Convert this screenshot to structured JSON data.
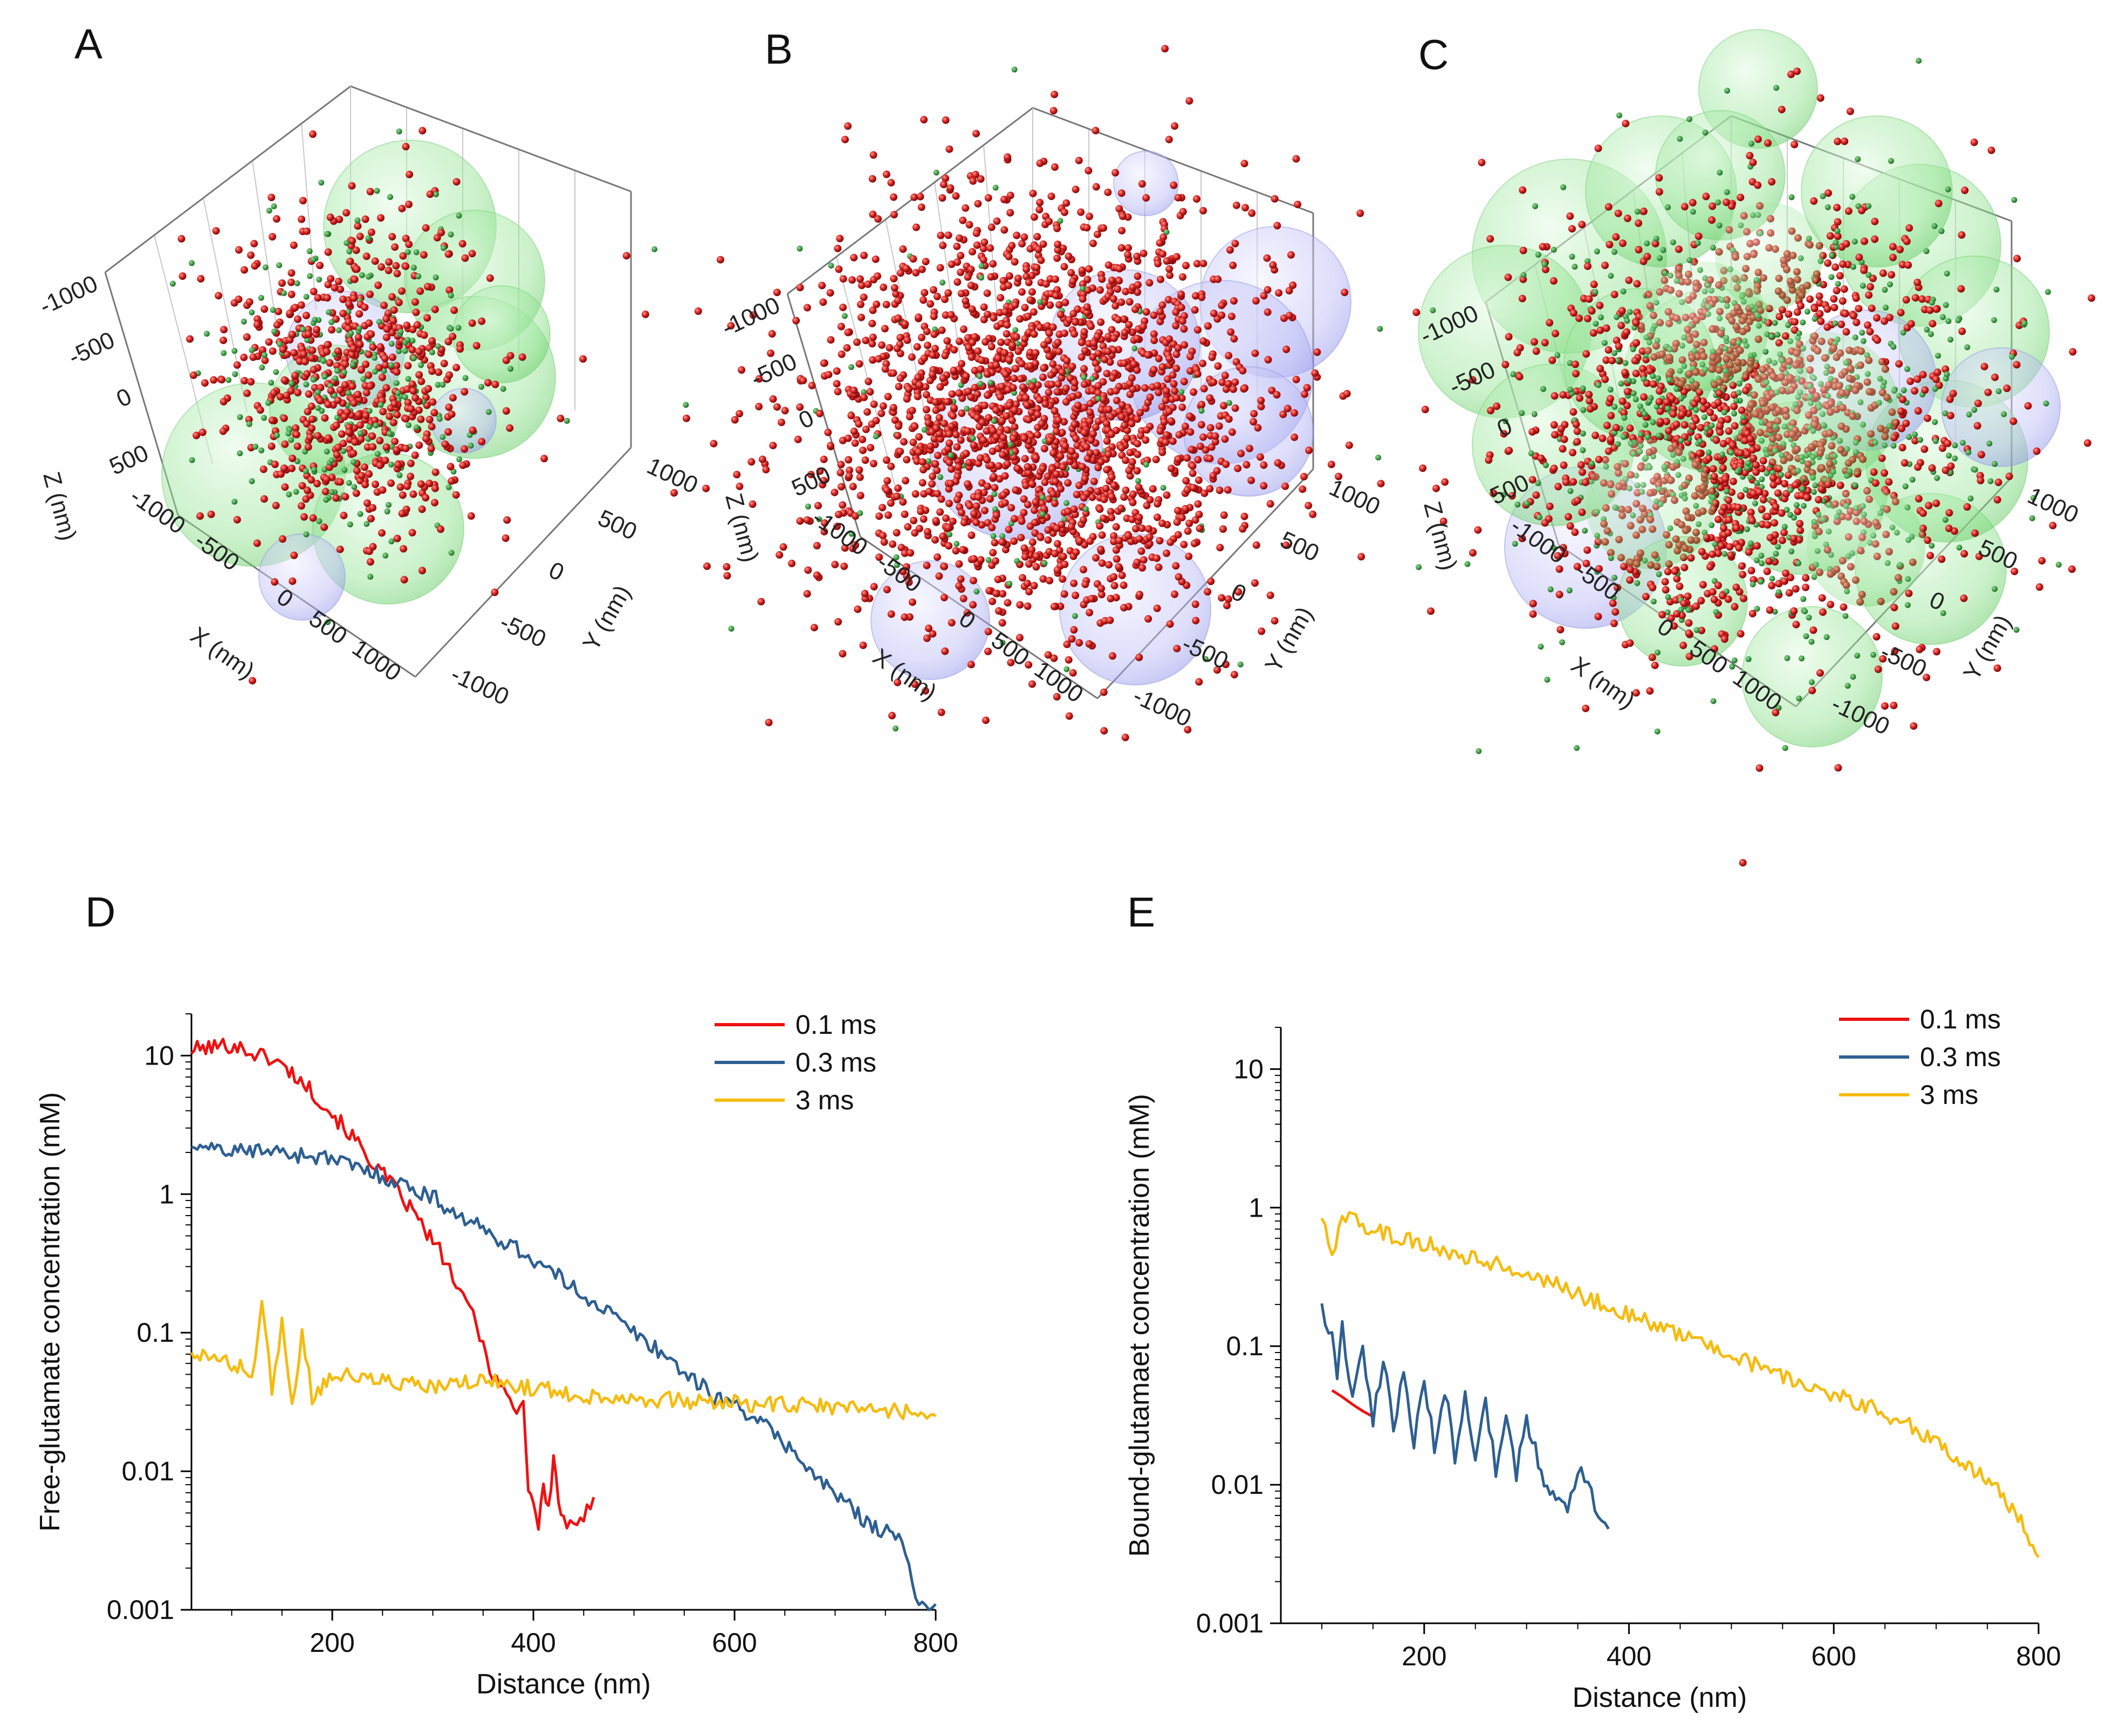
{
  "panels": {
    "A": {
      "label": "A"
    },
    "B": {
      "label": "B"
    },
    "C": {
      "label": "C"
    },
    "D": {
      "label": "D"
    },
    "E": {
      "label": "E"
    }
  },
  "scatter3d": {
    "x_axis": "X (nm)",
    "y_axis": "Y (nm)",
    "z_axis": "Z (nm)",
    "x_ticks": [
      "-1000",
      "-500",
      "0",
      "500",
      "1000"
    ],
    "y_ticks": [
      "-1000",
      "-500",
      "0",
      "500",
      "1000"
    ],
    "z_ticks": [
      "-1000",
      "-500",
      "0",
      "500"
    ],
    "colors": {
      "molecule": "#d42020",
      "bound": "#1e9a2e",
      "green_sphere": "#7ee07e",
      "blue_sphere": "#9a9cf0"
    }
  },
  "chart_data": [
    {
      "type": "line",
      "panel": "D",
      "title": "",
      "xlabel": "Distance (nm)",
      "ylabel": "Free-glutamate concentration (mM)",
      "xlim": [
        60,
        800
      ],
      "ylim": [
        0.001,
        20
      ],
      "yscale": "log",
      "xticks": [
        "200",
        "400",
        "600",
        "800"
      ],
      "yticks": [
        "0.001",
        "0.01",
        "0.1",
        "1",
        "10"
      ],
      "legend_position": "top-right",
      "series": [
        {
          "name": "0.1 ms",
          "color": "#ee1111",
          "x": [
            60,
            80,
            100,
            120,
            140,
            160,
            180,
            200,
            220,
            240,
            260,
            280,
            300,
            310,
            320,
            330,
            340,
            350,
            360,
            370,
            380,
            390,
            395,
            400,
            405,
            410,
            415,
            420,
            425,
            430,
            440,
            450,
            460
          ],
          "y": [
            11,
            11.5,
            12,
            10.5,
            9.5,
            7.5,
            5.5,
            3.8,
            2.6,
            1.7,
            1.15,
            0.75,
            0.45,
            0.36,
            0.25,
            0.17,
            0.14,
            0.08,
            0.05,
            0.04,
            0.028,
            0.03,
            0.008,
            0.006,
            0.004,
            0.008,
            0.005,
            0.013,
            0.006,
            0.0045,
            0.0037,
            0.0045,
            0.0065
          ]
        },
        {
          "name": "0.3 ms",
          "color": "#2e5f91",
          "x": [
            60,
            80,
            100,
            130,
            160,
            190,
            220,
            250,
            280,
            300,
            320,
            350,
            380,
            410,
            440,
            470,
            500,
            530,
            560,
            580,
            600,
            620,
            640,
            660,
            680,
            700,
            720,
            740,
            760,
            770,
            780,
            790,
            800
          ],
          "y": [
            2.4,
            2.2,
            2.0,
            2.1,
            1.95,
            1.85,
            1.6,
            1.35,
            1.1,
            0.95,
            0.75,
            0.55,
            0.42,
            0.3,
            0.21,
            0.15,
            0.1,
            0.07,
            0.045,
            0.035,
            0.03,
            0.025,
            0.018,
            0.014,
            0.009,
            0.007,
            0.005,
            0.004,
            0.0035,
            0.0025,
            0.0012,
            0.0011,
            0.0011
          ]
        },
        {
          "name": "3 ms",
          "color": "#f5bb0f",
          "x": [
            60,
            80,
            100,
            120,
            130,
            140,
            150,
            160,
            170,
            180,
            200,
            250,
            300,
            350,
            400,
            450,
            500,
            550,
            600,
            650,
            700,
            750,
            800
          ],
          "y": [
            0.07,
            0.065,
            0.06,
            0.05,
            0.15,
            0.04,
            0.12,
            0.03,
            0.1,
            0.035,
            0.05,
            0.045,
            0.04,
            0.045,
            0.04,
            0.035,
            0.034,
            0.032,
            0.031,
            0.03,
            0.029,
            0.028,
            0.025
          ]
        }
      ]
    },
    {
      "type": "line",
      "panel": "E",
      "title": "",
      "xlabel": "Distance (nm)",
      "ylabel": "Bound-glutamaet concentration (mM)",
      "xlim": [
        60,
        800
      ],
      "ylim": [
        0.001,
        20
      ],
      "yscale": "log",
      "xticks": [
        "200",
        "400",
        "600",
        "800"
      ],
      "yticks": [
        "0.001",
        "0.01",
        "0.1",
        "1",
        "10"
      ],
      "legend_position": "top-right",
      "series": [
        {
          "name": "0.1 ms",
          "color": "#ee1111",
          "x": [
            110,
            120,
            130,
            140,
            150
          ],
          "y": [
            0.048,
            0.043,
            0.038,
            0.034,
            0.031
          ]
        },
        {
          "name": "0.3 ms",
          "color": "#2e5f91",
          "x": [
            100,
            110,
            115,
            120,
            130,
            140,
            150,
            160,
            170,
            180,
            190,
            200,
            210,
            220,
            230,
            240,
            250,
            260,
            270,
            280,
            290,
            300,
            320,
            340,
            350,
            360,
            370,
            380
          ],
          "y": [
            0.18,
            0.12,
            0.06,
            0.14,
            0.04,
            0.1,
            0.03,
            0.08,
            0.026,
            0.07,
            0.02,
            0.06,
            0.018,
            0.05,
            0.016,
            0.045,
            0.014,
            0.04,
            0.013,
            0.035,
            0.012,
            0.03,
            0.009,
            0.0065,
            0.013,
            0.011,
            0.0055,
            0.0048
          ]
        },
        {
          "name": "3 ms",
          "color": "#f5bb0f",
          "x": [
            100,
            110,
            120,
            130,
            140,
            160,
            180,
            200,
            240,
            280,
            320,
            360,
            400,
            440,
            480,
            520,
            560,
            600,
            640,
            680,
            700,
            720,
            740,
            760,
            780,
            800
          ],
          "y": [
            0.95,
            0.45,
            0.8,
            1.0,
            0.75,
            0.65,
            0.6,
            0.55,
            0.45,
            0.38,
            0.3,
            0.22,
            0.17,
            0.13,
            0.1,
            0.075,
            0.058,
            0.045,
            0.035,
            0.026,
            0.02,
            0.016,
            0.012,
            0.009,
            0.006,
            0.003
          ]
        }
      ]
    }
  ]
}
